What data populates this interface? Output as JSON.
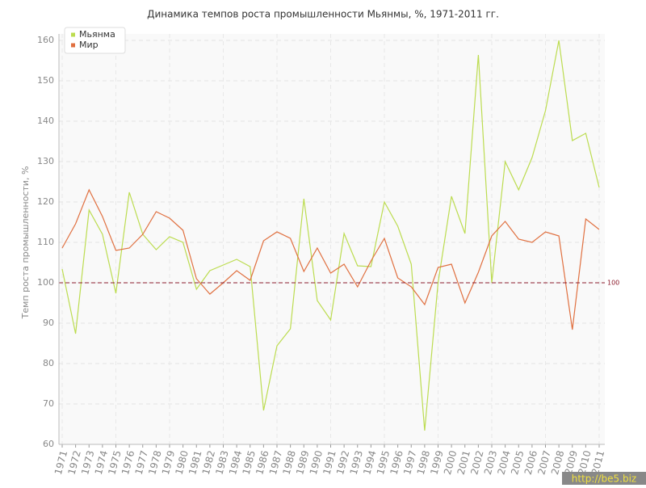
{
  "chart_data": {
    "type": "line",
    "title": "Динамика темпов роста промышленности Мьянмы, %, 1971-2011 гг.",
    "y_label": "Темп роста промышленности, %",
    "categories": [
      "1971",
      "1972",
      "1973",
      "1974",
      "1975",
      "1976",
      "1977",
      "1978",
      "1979",
      "1980",
      "1981",
      "1982",
      "1983",
      "1984",
      "1985",
      "1986",
      "1987",
      "1988",
      "1989",
      "1990",
      "1991",
      "1992",
      "1993",
      "1994",
      "1995",
      "1996",
      "1997",
      "1998",
      "1999",
      "2000",
      "2001",
      "2002",
      "2003",
      "2004",
      "2005",
      "2006",
      "2007",
      "2008",
      "2009",
      "2010",
      "2011"
    ],
    "series": [
      {
        "name": "Мьянма",
        "color": "#bcdc50",
        "values": [
          103.4,
          87.4,
          118,
          112,
          97.4,
          122.4,
          112,
          108.2,
          111.4,
          110,
          98.4,
          103,
          104.4,
          105.8,
          104,
          68.4,
          84.4,
          88.6,
          120.8,
          95.6,
          90.8,
          112.2,
          104.2,
          104,
          120,
          114,
          104.6,
          63.4,
          100,
          121.4,
          112.2,
          156.4,
          100,
          130,
          123,
          131,
          142.6,
          160,
          135.2,
          137,
          123.6
        ]
      },
      {
        "name": "Мир",
        "color": "#e07040",
        "values": [
          108.6,
          114.6,
          123,
          116.4,
          108,
          108.6,
          112,
          117.6,
          116,
          113,
          101,
          97.2,
          100,
          103,
          100.6,
          110.4,
          112.6,
          111,
          102.8,
          108.6,
          102.4,
          104.6,
          99,
          105.4,
          111,
          101.2,
          99,
          94.6,
          103.8,
          104.6,
          95,
          102.6,
          111.6,
          115.2,
          110.8,
          110,
          112.6,
          111.6,
          88.4,
          115.8,
          113.2
        ]
      }
    ],
    "ylim": [
      60,
      160
    ],
    "yticks": [
      60,
      70,
      80,
      90,
      100,
      110,
      120,
      130,
      140,
      150,
      160
    ],
    "grid": true,
    "reference_line": {
      "value": 100,
      "label": "100",
      "color": "#8b1a2b"
    },
    "legend": "top-left",
    "watermark": "http://be5.biz"
  }
}
